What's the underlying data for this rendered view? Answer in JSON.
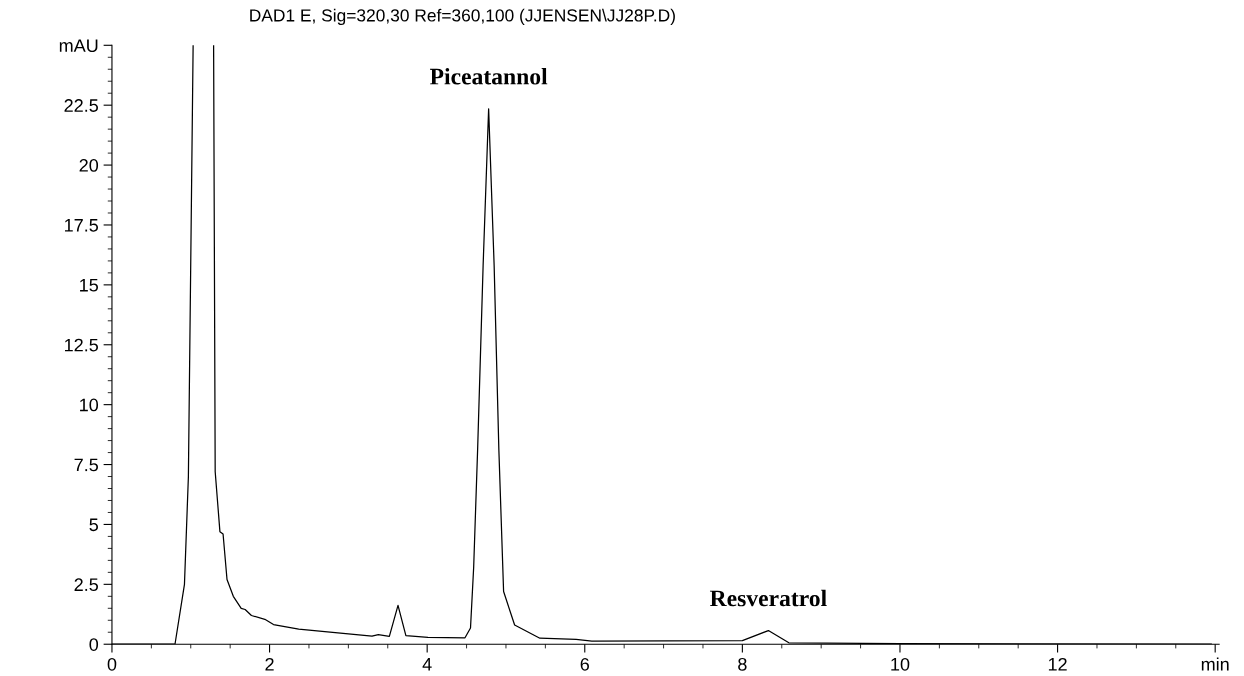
{
  "chart_data": {
    "type": "line",
    "title": "DAD1 E, Sig=320,30 Ref=360,100 (JJENSEN\\JJ28P.D)",
    "x": [
      0,
      0.8,
      0.92,
      0.97,
      1.0,
      1.03,
      null,
      1.29,
      1.31,
      1.37,
      1.41,
      1.46,
      1.54,
      1.64,
      1.69,
      1.77,
      1.94,
      2.05,
      2.37,
      2.9,
      3.3,
      3.38,
      3.52,
      3.63,
      3.73,
      4.01,
      4.48,
      4.55,
      4.59,
      4.64,
      4.71,
      4.78,
      4.85,
      4.91,
      4.97,
      5.11,
      5.43,
      5.89,
      6.09,
      8.0,
      8.33,
      8.59,
      10,
      13.95
    ],
    "series": [
      {
        "color": "#000000",
        "values": [
          0,
          0,
          2.5,
          7.0,
          16,
          25,
          null,
          25,
          7.2,
          4.7,
          4.6,
          2.7,
          2.0,
          1.5,
          1.45,
          1.2,
          1.04,
          0.82,
          0.63,
          0.46,
          0.34,
          0.4,
          0.33,
          1.62,
          0.36,
          0.29,
          0.27,
          0.68,
          3.2,
          8.1,
          15.8,
          22.35,
          15.8,
          8.1,
          2.2,
          0.8,
          0.25,
          0.2,
          0.13,
          0.15,
          0.57,
          0.06,
          0.03,
          0
        ]
      }
    ],
    "xlim": [
      0,
      14.05
    ],
    "xticks": [
      0,
      2,
      4,
      6,
      8,
      10,
      12,
      {
        "value": 14,
        "label": "min"
      }
    ],
    "ylim": [
      0,
      25
    ],
    "yticks": [
      0,
      2.5,
      5,
      7.5,
      10,
      12.5,
      15,
      17.5,
      20,
      22.5,
      {
        "value": 25,
        "label": "mAU"
      }
    ],
    "grid": false,
    "legend": false,
    "marker": "none",
    "line_style": "solid",
    "annotations": [
      {
        "text": "Piceatannol",
        "x": 4.78,
        "y": 22.35
      },
      {
        "text": "Resveratrol",
        "x": 8.33,
        "y": 0.57
      }
    ]
  }
}
